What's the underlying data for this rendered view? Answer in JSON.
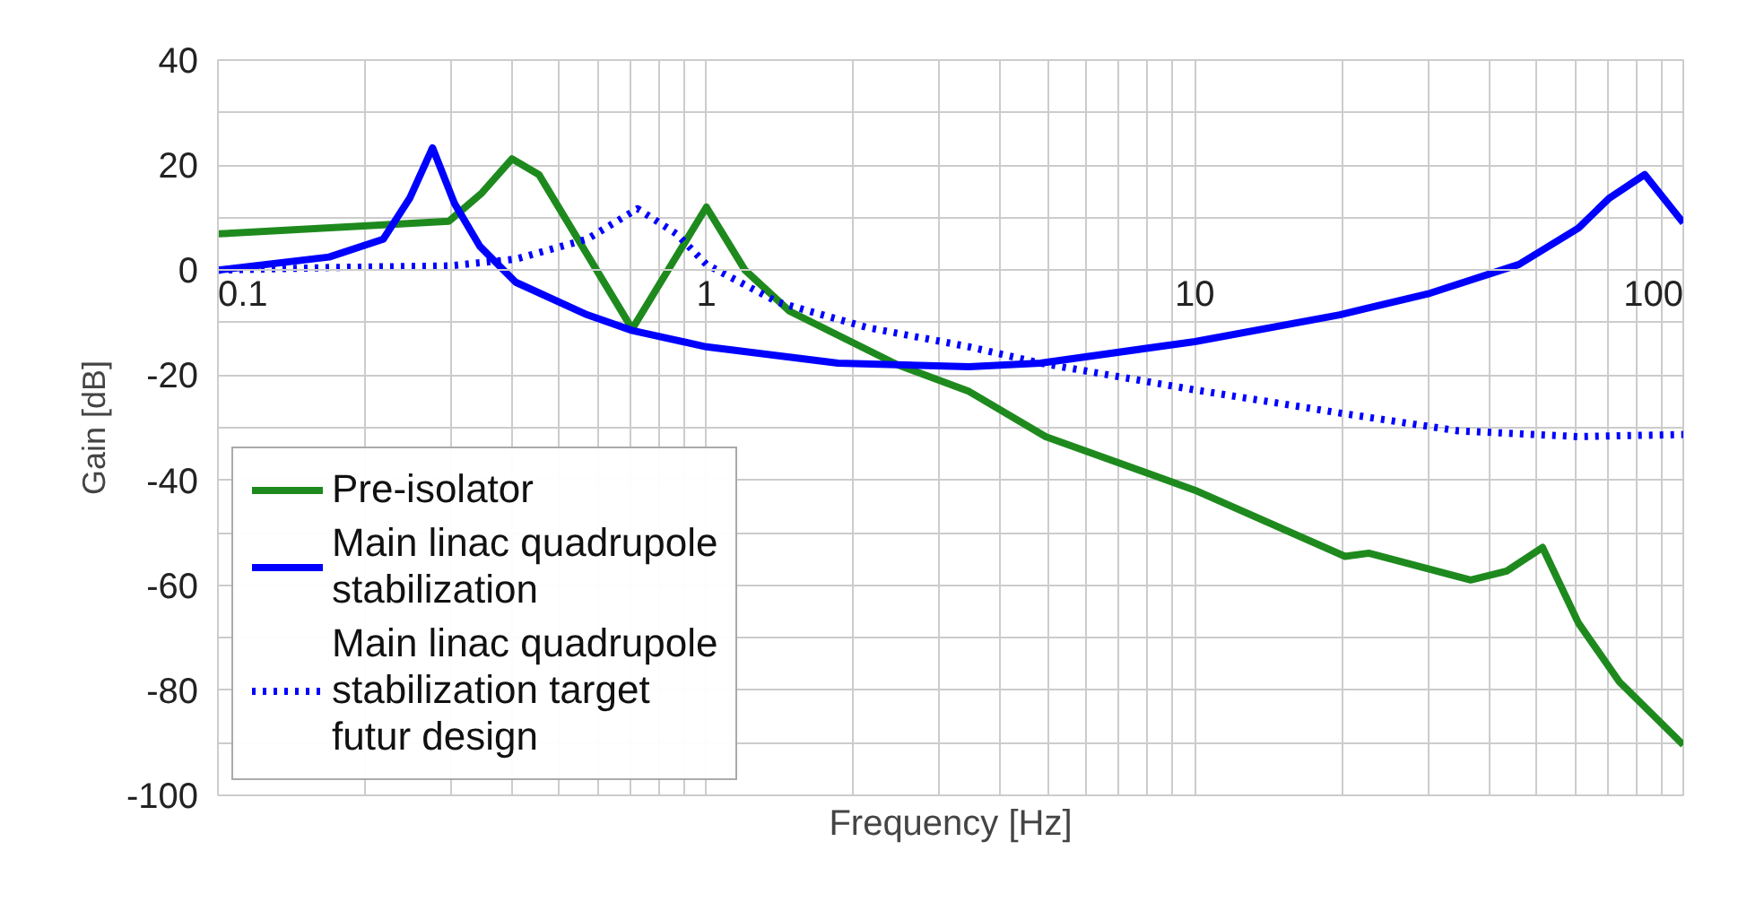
{
  "chart_data": {
    "type": "line",
    "xlabel": "Frequency [Hz]",
    "ylabel": "Gain [dB]",
    "log": "x",
    "grid": true,
    "legend": "bottom left",
    "line_style": "solid",
    "marker": "none",
    "xlim": [
      0.1,
      100
    ],
    "ylim": [
      -100,
      40
    ],
    "xticks": [
      0.1,
      {
        "value": 0.2,
        "label": null
      },
      {
        "value": 0.3,
        "label": null
      },
      {
        "value": 0.4,
        "label": null
      },
      {
        "value": 0.5,
        "label": null
      },
      {
        "value": 0.6,
        "label": null
      },
      {
        "value": 0.7,
        "label": null
      },
      {
        "value": 0.8,
        "label": null
      },
      {
        "value": 0.9,
        "label": null
      },
      1,
      {
        "value": 2,
        "label": null
      },
      {
        "value": 3,
        "label": null
      },
      {
        "value": 4,
        "label": null
      },
      {
        "value": 5,
        "label": null
      },
      {
        "value": 6,
        "label": null
      },
      {
        "value": 7,
        "label": null
      },
      {
        "value": 8,
        "label": null
      },
      {
        "value": 9,
        "label": null
      },
      10,
      {
        "value": 20,
        "label": null
      },
      {
        "value": 30,
        "label": null
      },
      {
        "value": 40,
        "label": null
      },
      {
        "value": 50,
        "label": null
      },
      {
        "value": 60,
        "label": null
      },
      {
        "value": 70,
        "label": null
      },
      {
        "value": 80,
        "label": null
      },
      {
        "value": 90,
        "label": null
      },
      100
    ],
    "yticks": [
      -100,
      {
        "value": -90,
        "label": null
      },
      -80,
      {
        "value": -70,
        "label": null
      },
      -60,
      {
        "value": -50,
        "label": null
      },
      -40,
      {
        "value": -30,
        "label": null
      },
      -20,
      {
        "value": -10,
        "label": null
      },
      0,
      {
        "value": 10,
        "label": null
      },
      20,
      {
        "value": 30,
        "label": null
      },
      40
    ],
    "series": [
      {
        "name": "Pre-isolator",
        "color": "#1e8a1e",
        "x": [
          0.1,
          0.297,
          0.347,
          0.4,
          0.454,
          0.705,
          1.0,
          1.2,
          1.48,
          2.46,
          3.45,
          4.95,
          10,
          20.3,
          22.7,
          36.7,
          43.5,
          51.5,
          61,
          74,
          100
        ],
        "values": [
          6.9,
          9.3,
          14.7,
          21.2,
          18.2,
          -11.2,
          12.0,
          0,
          -7.8,
          -18,
          -23.1,
          -31.7,
          -41.9,
          -54.5,
          -53.9,
          -59,
          -57.3,
          -52.8,
          -67.2,
          -78.4,
          -90.4
        ]
      },
      {
        "name": "Main linac quadrupole stabilization",
        "color": "#0000ff",
        "x": [
          0.1,
          0.169,
          0.218,
          0.247,
          0.275,
          0.305,
          0.344,
          0.407,
          0.57,
          0.705,
          1.0,
          1.86,
          3.45,
          4.83,
          10,
          19.8,
          30.3,
          46.1,
          61,
          70.5,
          83.4,
          100
        ],
        "values": [
          0,
          2.5,
          5.9,
          13.7,
          23.3,
          12.7,
          4.5,
          -2.3,
          -8.5,
          -11.5,
          -14.6,
          -17.7,
          -18.4,
          -17.7,
          -13.6,
          -8.5,
          -4.4,
          1.1,
          8,
          13.7,
          18.2,
          9
        ]
      },
      {
        "name": "Main linac quadrupole stabilization target futur design",
        "color": "#0000ff",
        "line_style": "dotted",
        "x": [
          0.1,
          0.169,
          0.297,
          0.407,
          0.57,
          0.723,
          0.869,
          1.0,
          1.4,
          2.13,
          3.45,
          4.83,
          10,
          19.8,
          34.6,
          61,
          100
        ],
        "values": [
          0,
          0.5,
          0.8,
          2.1,
          5.9,
          11.7,
          6.9,
          1.1,
          -6.1,
          -10.9,
          -14.6,
          -17.7,
          -22.8,
          -27.2,
          -30.6,
          -31.7,
          -31.3
        ]
      }
    ]
  }
}
